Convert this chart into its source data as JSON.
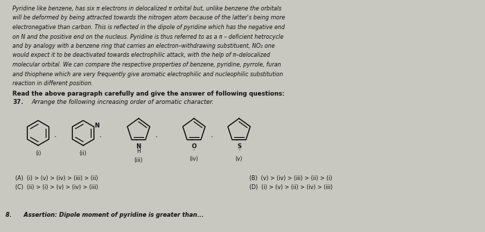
{
  "bg_color": "#c8c8c0",
  "paragraph_text": "Pyridine like benzene, has six π electrons in delocalized π orbital but, unlike benzene the orbitals\nwill be deformed by being attracted towards the nitrogen atom because of the latter's being more\nelectronegative than carbon. This is reflected in the dipole of pyridine which has the negative end\non N and the positive end on the nucleus. Pyridine is thus referred to as a π – deficient hetrocycle\nand by analogy with a benzene ring that carries an electron–withdrawing substituent, NO₂ one\nwould expect it to be deactivated towards electrophilic attack, with the help of π–delocalized\nmolecular orbital. We can compare the respective properties of benzene, pyridine, pyrrole, furan\nand thiophene which are very frequently give aromatic electrophilic and nucleophilic substitution\nreaction in different position.",
  "bold_text": "Read the above paragraph carefully and give the answer of following questions:",
  "question_num": "37.",
  "question_text": "Arrange the following increasing order of aromatic character.",
  "options_left": [
    "(A)  (i) > (v) > (iv) > (iii) > (ii)",
    "(C)  (ii) > (i) > (v) > (iv) > (iii)"
  ],
  "options_right": [
    "(B)  (v) > (iv) > (iii) > (ii) > (i)",
    "(D)  (i) > (v) > (ii) > (iv) > (iii)"
  ],
  "bottom_text": "8.      Assertion: Dipole moment of pyridine is greater than...",
  "molecule_labels": [
    "(i)",
    "(ii)",
    "(iii)",
    "(iv)",
    "(v)"
  ],
  "separator": ".",
  "text_color": "#111111",
  "lw_mol": 1.0
}
